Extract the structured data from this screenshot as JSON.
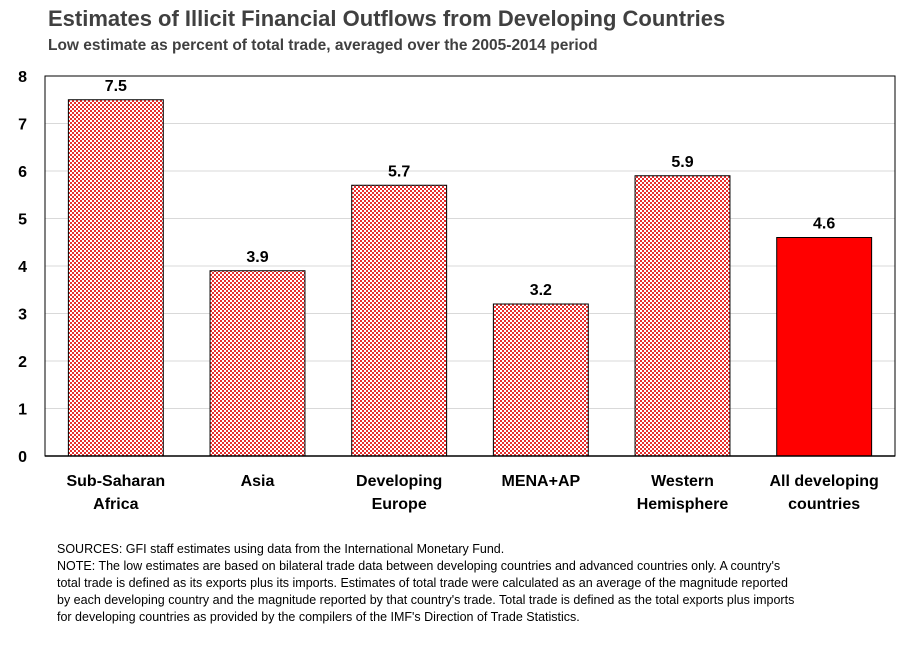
{
  "title": "Estimates of Illicit Financial Outflows from Developing Countries",
  "subtitle": "Low estimate as percent of total trade, averaged over the 2005-2014 period",
  "chart_data": {
    "type": "bar",
    "categories": [
      [
        "Sub-Saharan",
        "Africa"
      ],
      [
        "Asia"
      ],
      [
        "Developing",
        "Europe"
      ],
      [
        "MENA+AP"
      ],
      [
        "Western",
        "Hemisphere"
      ],
      [
        "All developing",
        "countries"
      ]
    ],
    "values": [
      7.5,
      3.9,
      5.7,
      3.2,
      5.9,
      4.6
    ],
    "data_labels": [
      "7.5",
      "3.9",
      "5.7",
      "3.2",
      "5.9",
      "4.6"
    ],
    "ylim": [
      0,
      8
    ],
    "yticks": [
      0,
      1,
      2,
      3,
      4,
      5,
      6,
      7,
      8
    ],
    "grid": true,
    "legend": "none",
    "colors": {
      "bar_fill": "#ffffff",
      "bar_pattern": "#e8302f",
      "highlight_bar": "#ff0000",
      "bar_outline": "#000000",
      "grid": "#d9d9d9",
      "axis": "#000000"
    },
    "highlight_index": 5
  },
  "notes": {
    "sources": "SOURCES: GFI staff estimates using data from the International Monetary Fund.",
    "note_lines": [
      "NOTE: The low estimates are based on bilateral trade data between developing countries and advanced countries only.  A country's",
      "total trade is defined as its exports plus its imports.  Estimates of total trade were calculated as an average of the magnitude reported",
      "by each developing country and the magnitude reported by that country's trade. Total trade is defined as the total exports plus imports",
      "for developing countries as provided by the compilers of the IMF's Direction of Trade Statistics."
    ]
  }
}
